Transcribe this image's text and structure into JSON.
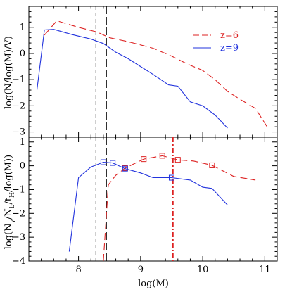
{
  "chart_data": [
    {
      "type": "line",
      "panel": "top",
      "ylabel": "log(N/log(M)/V)",
      "xlim": [
        7.2,
        11.2
      ],
      "ylim": [
        -3.2,
        1.8
      ],
      "yticks": [
        -3,
        -2,
        -1,
        0,
        1
      ],
      "ytick_labels": [
        "−3",
        "−2",
        "−1",
        "0",
        "1"
      ],
      "grid": false,
      "legend_position": "top-right",
      "legend": [
        {
          "label": "z=6",
          "color": "#dd2222",
          "dash": "long"
        },
        {
          "label": "z=9",
          "color": "#2233dd",
          "dash": "solid"
        }
      ],
      "vlines": [
        {
          "x": 8.28,
          "color": "#000000",
          "style": "short-dash"
        },
        {
          "x": 8.45,
          "color": "#000000",
          "style": "long-dash"
        }
      ],
      "series": [
        {
          "name": "z=6",
          "color": "#dd2222",
          "dash": "long",
          "x": [
            7.45,
            7.65,
            8.0,
            8.3,
            8.5,
            8.8,
            9.2,
            9.5,
            9.75,
            10.0,
            10.2,
            10.4,
            10.6,
            10.85,
            11.05
          ],
          "y": [
            0.7,
            1.25,
            1.0,
            0.82,
            0.6,
            0.45,
            0.2,
            -0.1,
            -0.4,
            -0.65,
            -1.0,
            -1.45,
            -1.75,
            -2.1,
            -2.85
          ]
        },
        {
          "name": "z=9",
          "color": "#2233dd",
          "dash": "solid",
          "x": [
            7.33,
            7.45,
            7.6,
            7.9,
            8.2,
            8.4,
            8.6,
            8.8,
            9.0,
            9.2,
            9.45,
            9.6,
            9.8,
            10.0,
            10.2,
            10.4
          ],
          "y": [
            -1.4,
            0.9,
            0.92,
            0.72,
            0.55,
            0.38,
            0.05,
            -0.2,
            -0.5,
            -0.8,
            -1.2,
            -1.25,
            -1.85,
            -2.0,
            -2.35,
            -2.85
          ]
        }
      ]
    },
    {
      "type": "line",
      "panel": "bottom",
      "xlabel": "log(M)",
      "ylabel": "log(Nᵧ/N_b/t_H/log(M))",
      "ylabel_parts": {
        "a": "log(N",
        "b": "γ",
        "c": "/N",
        "d": "b",
        "e": "/t",
        "f": "H",
        "g": "/log(M))"
      },
      "xlim": [
        7.2,
        11.2
      ],
      "ylim": [
        -4.0,
        1.2
      ],
      "xticks": [
        8,
        9,
        10,
        11
      ],
      "xtick_labels": [
        "8",
        "9",
        "10",
        "11"
      ],
      "yticks": [
        -4,
        -3,
        -2,
        -1,
        0,
        1
      ],
      "ytick_labels": [
        "−4",
        "−3",
        "−2",
        "−1",
        "0",
        "1"
      ],
      "grid": false,
      "vlines": [
        {
          "x": 8.28,
          "color": "#000000",
          "style": "short-dash"
        },
        {
          "x": 8.45,
          "color": "#000000",
          "style": "long-dash"
        },
        {
          "x": 9.52,
          "color": "#dd2222",
          "style": "dash-dot"
        }
      ],
      "series": [
        {
          "name": "z=6",
          "color": "#dd2222",
          "dash": "long",
          "x": [
            8.4,
            8.48,
            8.6,
            8.75,
            9.05,
            9.35,
            9.6,
            9.85,
            10.15,
            10.5,
            10.85
          ],
          "y": [
            -4.0,
            -0.8,
            -0.4,
            -0.1,
            0.28,
            0.42,
            0.25,
            0.2,
            0.02,
            -0.45,
            -0.6
          ]
        },
        {
          "name": "z=9",
          "color": "#2233dd",
          "dash": "solid",
          "x": [
            7.85,
            8.0,
            8.2,
            8.4,
            8.55,
            8.75,
            9.0,
            9.2,
            9.5,
            9.8,
            10.0,
            10.15,
            10.4
          ],
          "y": [
            -3.6,
            -0.5,
            -0.05,
            0.15,
            0.12,
            -0.12,
            -0.3,
            -0.5,
            -0.5,
            -0.6,
            -0.9,
            -0.95,
            -1.65
          ]
        }
      ],
      "markers": [
        {
          "series": "z=6",
          "x": [
            8.75,
            9.05,
            9.35,
            9.6,
            10.15
          ],
          "y": [
            -0.1,
            0.28,
            0.42,
            0.25,
            0.02
          ]
        },
        {
          "series": "z=9",
          "x": [
            8.4,
            8.55,
            8.75,
            9.5
          ],
          "y": [
            0.15,
            0.12,
            -0.12,
            -0.5
          ]
        }
      ]
    }
  ]
}
